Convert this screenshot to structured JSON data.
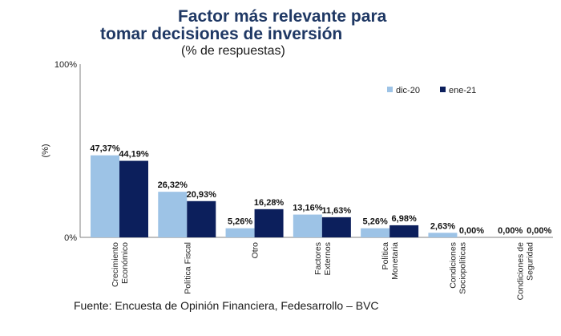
{
  "title_line1": "Factor más relevante para",
  "title_line2": "tomar decisiones de inversión",
  "subtitle": "(% de respuestas)",
  "source": "Fuente: Encuesta de Opinión Financiera, Fedesarrollo – BVC",
  "colors": {
    "dic-20": "#9dc3e6",
    "ene-21": "#0c1f5c",
    "title": "#1f3864"
  },
  "chart_data": {
    "type": "bar",
    "ylabel": "(%)",
    "ylim": [
      0,
      100
    ],
    "y_ticks": [
      "0%",
      "100%"
    ],
    "legend_position": "top-right",
    "categories": [
      [
        "Crecimiento",
        "Económico"
      ],
      [
        "Política Fiscal"
      ],
      [
        "Otro"
      ],
      [
        "Factores",
        "Externos"
      ],
      [
        "Política",
        "Monetaria"
      ],
      [
        "Condiciones",
        "Sociopolíticas"
      ],
      [
        "Condiciones de",
        "Seguridad"
      ]
    ],
    "series": [
      {
        "name": "dic-20",
        "values": [
          47.37,
          26.32,
          5.26,
          13.16,
          5.26,
          2.63,
          0.0
        ],
        "labels": [
          "47,37%",
          "26,32%",
          "5,26%",
          "13,16%",
          "5,26%",
          "2,63%",
          "0,00%"
        ]
      },
      {
        "name": "ene-21",
        "values": [
          44.19,
          20.93,
          16.28,
          11.63,
          6.98,
          0.0,
          0.0
        ],
        "labels": [
          "44,19%",
          "20,93%",
          "16,28%",
          "11,63%",
          "6,98%",
          "0,00%",
          "0,00%"
        ]
      }
    ]
  }
}
